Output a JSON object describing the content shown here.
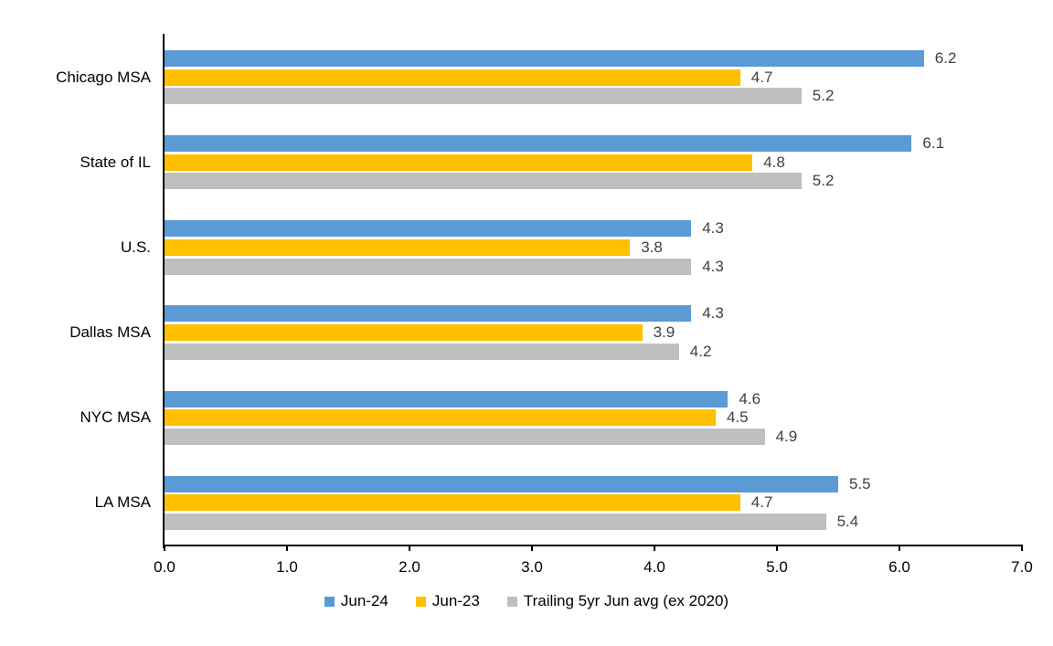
{
  "chart_data": {
    "type": "bar",
    "orientation": "horizontal",
    "title": "",
    "categories": [
      "Chicago MSA",
      "State of IL",
      "U.S.",
      "Dallas MSA",
      "NYC MSA",
      "LA MSA"
    ],
    "series": [
      {
        "name": "Jun-24",
        "color": "#5B9BD5",
        "values": [
          6.2,
          6.1,
          4.3,
          4.3,
          4.6,
          5.5
        ]
      },
      {
        "name": "Jun-23",
        "color": "#FFC000",
        "values": [
          4.7,
          4.8,
          3.8,
          3.9,
          4.5,
          4.7
        ]
      },
      {
        "name": "Trailing 5yr Jun avg (ex 2020)",
        "color": "#BFBFBF",
        "values": [
          5.2,
          5.2,
          4.3,
          4.2,
          4.9,
          5.4
        ]
      }
    ],
    "xlim": [
      0,
      7
    ],
    "x_ticks": [
      "0.0",
      "1.0",
      "2.0",
      "3.0",
      "4.0",
      "5.0",
      "6.0",
      "7.0"
    ],
    "data_labels_shown": true,
    "data_label_color": "#404040",
    "axis_color": "#000000",
    "grid": false,
    "legend_position": "bottom"
  }
}
